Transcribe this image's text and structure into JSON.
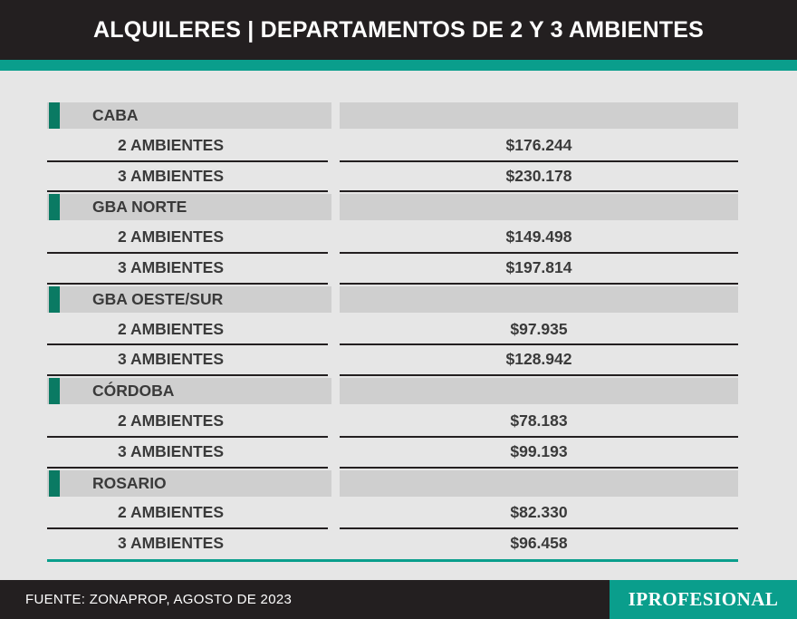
{
  "header": {
    "title": "ALQUILERES | DEPARTAMENTOS DE 2 Y 3 AMBIENTES"
  },
  "chart_data": {
    "type": "table",
    "title": "ALQUILERES | DEPARTAMENTOS DE 2 Y 3 AMBIENTES",
    "groups": [
      {
        "name": "CABA",
        "rows": [
          {
            "label": "2 AMBIENTES",
            "value": "$176.244"
          },
          {
            "label": "3 AMBIENTES",
            "value": "$230.178"
          }
        ]
      },
      {
        "name": "GBA NORTE",
        "rows": [
          {
            "label": "2 AMBIENTES",
            "value": "$149.498"
          },
          {
            "label": "3 AMBIENTES",
            "value": "$197.814"
          }
        ]
      },
      {
        "name": "GBA OESTE/SUR",
        "rows": [
          {
            "label": "2 AMBIENTES",
            "value": "$97.935"
          },
          {
            "label": "3 AMBIENTES",
            "value": "$128.942"
          }
        ]
      },
      {
        "name": "CÓRDOBA",
        "rows": [
          {
            "label": "2 AMBIENTES",
            "value": "$78.183"
          },
          {
            "label": "3 AMBIENTES",
            "value": "$99.193"
          }
        ]
      },
      {
        "name": "ROSARIO",
        "rows": [
          {
            "label": "2 AMBIENTES",
            "value": "$82.330"
          },
          {
            "label": "3 AMBIENTES",
            "value": "$96.458"
          }
        ]
      }
    ]
  },
  "footer": {
    "source": "FUENTE: ZONAPROP, AGOSTO DE 2023",
    "brand": "IPROFESIONAL"
  },
  "colors": {
    "header_bg": "#231f20",
    "accent": "#0a9e8c",
    "marker": "#0a7a63",
    "row_bg": "#cfcfcf",
    "page_bg": "#e6e6e6"
  }
}
